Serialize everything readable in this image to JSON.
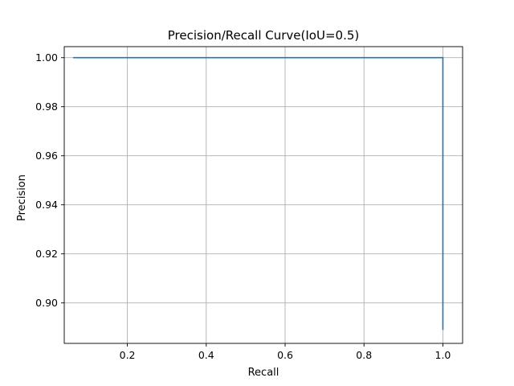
{
  "chart_data": {
    "type": "line",
    "title": "Precision/Recall Curve(IoU=0.5)",
    "xlabel": "Recall",
    "ylabel": "Precision",
    "xlim": [
      0.04,
      1.05
    ],
    "ylim": [
      0.8835,
      1.0045
    ],
    "xticks": [
      0.2,
      0.4,
      0.6,
      0.8,
      1.0
    ],
    "xtick_labels": [
      "0.2",
      "0.4",
      "0.6",
      "0.8",
      "1.0"
    ],
    "yticks": [
      0.9,
      0.92,
      0.94,
      0.96,
      0.98,
      1.0
    ],
    "ytick_labels": [
      "0.90",
      "0.92",
      "0.94",
      "0.96",
      "0.98",
      "1.00"
    ],
    "grid": true,
    "series": [
      {
        "color": "#1f77b4",
        "x": [
          0.0625,
          1.0,
          1.0
        ],
        "y": [
          1.0,
          1.0,
          0.889
        ]
      }
    ]
  }
}
